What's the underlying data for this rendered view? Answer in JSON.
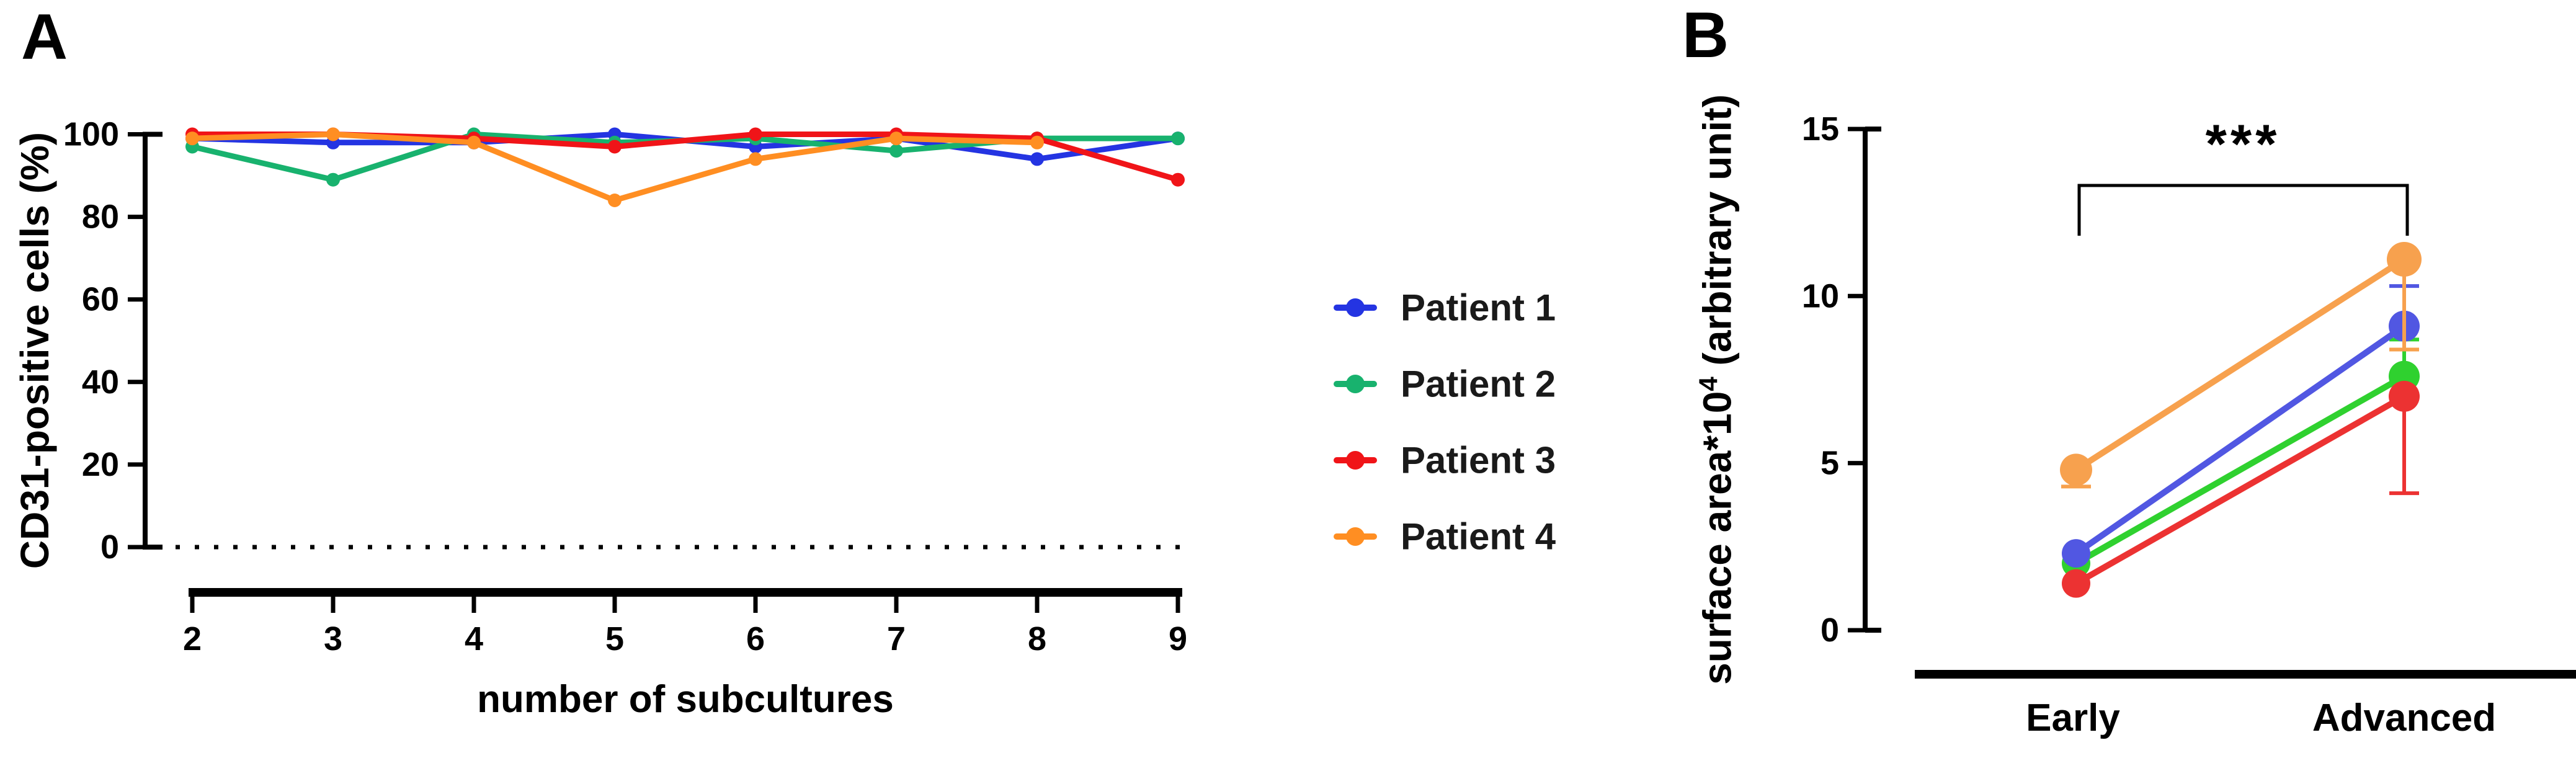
{
  "figure": {
    "background": "#ffffff"
  },
  "panelA": {
    "letter": "A",
    "ylabel": "CD31-positive cells (%)",
    "xlabel": "number of subcultures"
  },
  "panelB": {
    "letter": "B",
    "ylabel_base": "surface area*10",
    "ylabel_sup": "4",
    "ylabel_rest": " (arbitrary unit)",
    "significance_label": "***"
  },
  "legend": {
    "items": [
      {
        "label": "Patient 1",
        "color": "#2434e2"
      },
      {
        "label": "Patient 2",
        "color": "#18b26e"
      },
      {
        "label": "Patient 3",
        "color": "#f01418"
      },
      {
        "label": "Patient 4",
        "color": "#ff8e22"
      }
    ]
  },
  "chart_data": [
    {
      "type": "line",
      "title": "",
      "xlabel": "number of subcultures",
      "ylabel": "CD31-positive cells (%)",
      "x": [
        2,
        3,
        4,
        5,
        6,
        7,
        8,
        9
      ],
      "ylim": [
        0,
        100
      ],
      "yticks": [
        0,
        20,
        40,
        60,
        80,
        100
      ],
      "zero_line": "dotted",
      "grid": false,
      "series": [
        {
          "name": "Patient 1",
          "color": "#2434e2",
          "values": [
            99,
            98,
            98,
            100,
            97,
            99,
            94,
            99
          ]
        },
        {
          "name": "Patient 2",
          "color": "#18b26e",
          "values": [
            97,
            89,
            100,
            98,
            99,
            96,
            99,
            99
          ]
        },
        {
          "name": "Patient 3",
          "color": "#f01418",
          "values": [
            100,
            100,
            99,
            97,
            100,
            100,
            99,
            89
          ]
        },
        {
          "name": "Patient 4",
          "color": "#ff8e22",
          "values": [
            99,
            100,
            98,
            84,
            94,
            99,
            98,
            null
          ]
        }
      ]
    },
    {
      "type": "line",
      "title": "",
      "ylabel": "surface area*10^4 (arbitrary unit)",
      "categories": [
        "Early",
        "Advanced"
      ],
      "ylim": [
        0,
        15
      ],
      "yticks": [
        0,
        5,
        10,
        15
      ],
      "significance": {
        "label": "***",
        "between": [
          "Early",
          "Advanced"
        ]
      },
      "series": [
        {
          "name": "Patient 2",
          "color": "#2fd12f",
          "early": 2.0,
          "advanced": 7.6,
          "advanced_err_high": 8.7
        },
        {
          "name": "Patient 3",
          "color": "#ec3232",
          "early": 1.4,
          "advanced": 7.0,
          "advanced_err_low": 4.1
        },
        {
          "name": "Patient 1",
          "color": "#5157e2",
          "early": 2.3,
          "advanced": 9.1,
          "advanced_err_high": 10.3
        },
        {
          "name": "Patient 4",
          "color": "#f7a14e",
          "early": 4.8,
          "early_err_low": 4.3,
          "advanced": 11.1,
          "advanced_err_low": 8.4
        }
      ]
    }
  ]
}
